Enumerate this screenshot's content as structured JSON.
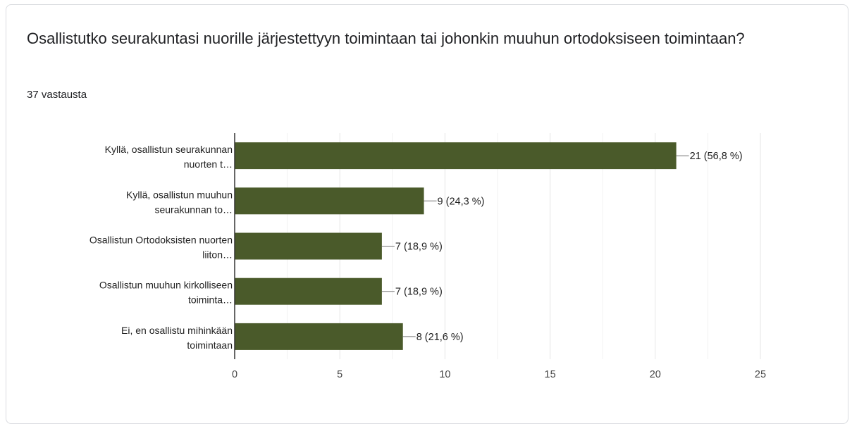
{
  "question": {
    "title": "Osallistutko seurakuntasi nuorille järjestettyyn toimintaan tai johonkin muuhun ortodoksiseen toimintaan?",
    "response_count": "37 vastausta"
  },
  "chart_data": {
    "type": "bar",
    "orientation": "horizontal",
    "categories": [
      [
        "Kyllä, osallistun seurakunnan",
        "nuorten t…"
      ],
      [
        "Kyllä, osallistun muuhun",
        "seurakunnan to…"
      ],
      [
        "Osallistun Ortodoksisten nuorten",
        "liiton…"
      ],
      [
        "Osallistun muuhun kirkolliseen",
        "toiminta…"
      ],
      [
        "Ei, en osallistu mihinkään",
        "toimintaan"
      ]
    ],
    "values": [
      21,
      9,
      7,
      7,
      8
    ],
    "data_labels": [
      "21 (56,8 %)",
      "9 (24,3 %)",
      "7 (18,9 %)",
      "7 (18,9 %)",
      "8 (21,6 %)"
    ],
    "xlim": [
      0,
      25
    ],
    "x_ticks": [
      0,
      5,
      10,
      15,
      20,
      25
    ],
    "bar_color": "#4a5a2a",
    "grid": true
  }
}
